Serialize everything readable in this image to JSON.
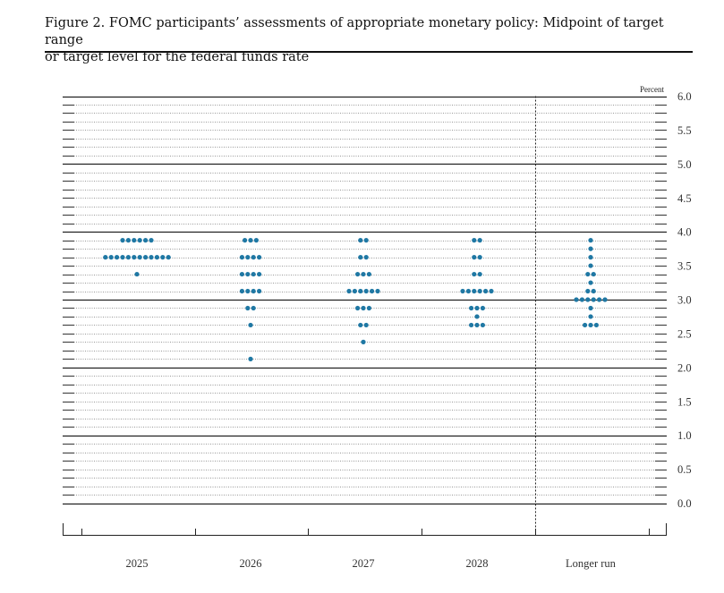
{
  "title_line1": "Figure 2. FOMC participants’ assessments of appropriate monetary policy: Midpoint of target range",
  "title_line2": "or target level for the federal funds rate",
  "chart_data": {
    "type": "scatter",
    "subtype": "dot plot",
    "unit_label": "Percent",
    "ylim": [
      0,
      6
    ],
    "y_ticks": [
      "0.0",
      "0.5",
      "1.0",
      "1.5",
      "2.0",
      "2.5",
      "3.0",
      "3.5",
      "4.0",
      "4.5",
      "5.0",
      "5.5",
      "6.0"
    ],
    "categories": [
      "2025",
      "2026",
      "2027",
      "2028",
      "Longer run"
    ],
    "dot_color": "#1f78a4",
    "series": [
      {
        "name": "2025",
        "dots": [
          {
            "y": 3.875,
            "count": 6
          },
          {
            "y": 3.625,
            "count": 12
          },
          {
            "y": 3.375,
            "count": 1
          }
        ]
      },
      {
        "name": "2026",
        "dots": [
          {
            "y": 3.875,
            "count": 3
          },
          {
            "y": 3.625,
            "count": 4
          },
          {
            "y": 3.375,
            "count": 4
          },
          {
            "y": 3.125,
            "count": 4
          },
          {
            "y": 2.875,
            "count": 2
          },
          {
            "y": 2.625,
            "count": 1
          },
          {
            "y": 2.125,
            "count": 1
          }
        ]
      },
      {
        "name": "2027",
        "dots": [
          {
            "y": 3.875,
            "count": 2
          },
          {
            "y": 3.625,
            "count": 2
          },
          {
            "y": 3.375,
            "count": 3
          },
          {
            "y": 3.125,
            "count": 6
          },
          {
            "y": 2.875,
            "count": 3
          },
          {
            "y": 2.625,
            "count": 2
          },
          {
            "y": 2.375,
            "count": 1
          }
        ]
      },
      {
        "name": "2028",
        "dots": [
          {
            "y": 3.875,
            "count": 2
          },
          {
            "y": 3.625,
            "count": 2
          },
          {
            "y": 3.375,
            "count": 2
          },
          {
            "y": 3.125,
            "count": 6
          },
          {
            "y": 2.875,
            "count": 3
          },
          {
            "y": 2.75,
            "count": 1
          },
          {
            "y": 2.625,
            "count": 3
          }
        ]
      },
      {
        "name": "Longer run",
        "dots": [
          {
            "y": 3.875,
            "count": 1
          },
          {
            "y": 3.75,
            "count": 1
          },
          {
            "y": 3.625,
            "count": 1
          },
          {
            "y": 3.5,
            "count": 1
          },
          {
            "y": 3.375,
            "count": 2
          },
          {
            "y": 3.25,
            "count": 1
          },
          {
            "y": 3.125,
            "count": 2
          },
          {
            "y": 3.0,
            "count": 6
          },
          {
            "y": 2.875,
            "count": 1
          },
          {
            "y": 2.75,
            "count": 1
          },
          {
            "y": 2.625,
            "count": 3
          }
        ]
      }
    ]
  }
}
